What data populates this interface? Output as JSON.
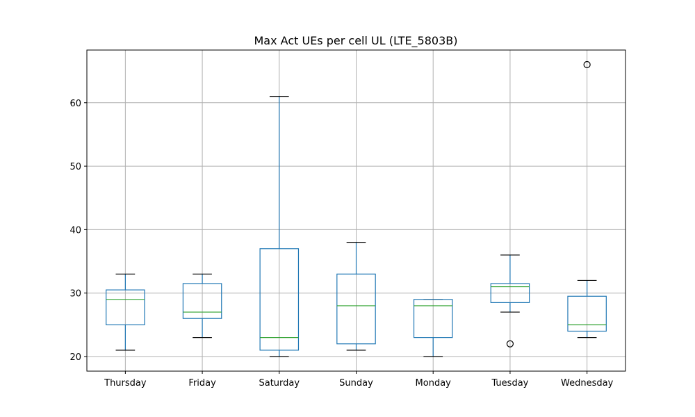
{
  "chart_data": {
    "type": "box",
    "title": "Max Act UEs per cell UL (LTE_5803B)",
    "xlabel": "",
    "ylabel": "",
    "categories": [
      "Thursday",
      "Friday",
      "Saturday",
      "Sunday",
      "Monday",
      "Tuesday",
      "Wednesday"
    ],
    "boxes": [
      {
        "category": "Thursday",
        "whislo": 21,
        "q1": 25,
        "median": 29,
        "q3": 30.5,
        "whishi": 33,
        "fliers": []
      },
      {
        "category": "Friday",
        "whislo": 23,
        "q1": 26,
        "median": 27,
        "q3": 31.5,
        "whishi": 33,
        "fliers": []
      },
      {
        "category": "Saturday",
        "whislo": 20,
        "q1": 21,
        "median": 23,
        "q3": 37,
        "whishi": 61,
        "fliers": []
      },
      {
        "category": "Sunday",
        "whislo": 21,
        "q1": 22,
        "median": 28,
        "q3": 33,
        "whishi": 38,
        "fliers": []
      },
      {
        "category": "Monday",
        "whislo": 20,
        "q1": 23,
        "median": 28,
        "q3": 29,
        "whishi": 29,
        "fliers": []
      },
      {
        "category": "Tuesday",
        "whislo": 27,
        "q1": 28.5,
        "median": 31,
        "q3": 31.5,
        "whishi": 36,
        "fliers": [
          22
        ]
      },
      {
        "category": "Wednesday",
        "whislo": 23,
        "q1": 24,
        "median": 25,
        "q3": 29.5,
        "whishi": 32,
        "fliers": [
          66
        ]
      }
    ],
    "yticks": [
      20,
      30,
      40,
      50,
      60
    ],
    "ylim": [
      17.7,
      68.3
    ],
    "grid": true,
    "colors": {
      "box": "#1f77b4",
      "median": "#2ca02c",
      "cap": "#000000",
      "grid": "#b0b0b0"
    }
  }
}
